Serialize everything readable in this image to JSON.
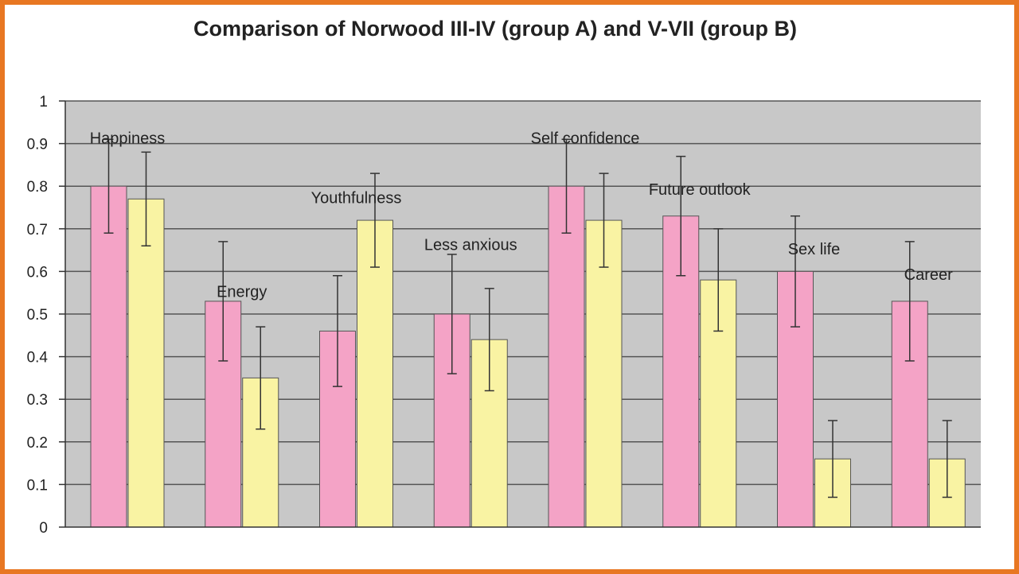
{
  "chart_data": {
    "type": "bar",
    "title": "Comparison of Norwood III-IV (group A) and V-VII (group B)",
    "xlabel": "",
    "ylabel": "",
    "ylim": [
      0,
      1
    ],
    "yticks": [
      "0",
      "0.1",
      "0.2",
      "0.3",
      "0.4",
      "0.5",
      "0.6",
      "0.7",
      "0.8",
      "0.9",
      "1"
    ],
    "grid": true,
    "categories": [
      "Happiness",
      "Energy",
      "Youthfulness",
      "Less anxious",
      "Self confidence",
      "Future outlook",
      "Sex life",
      "Career"
    ],
    "series": [
      {
        "color": "#f4a3c6",
        "values": [
          0.8,
          0.53,
          0.46,
          0.5,
          0.8,
          0.73,
          0.6,
          0.53
        ],
        "error": [
          0.11,
          0.14,
          0.13,
          0.14,
          0.11,
          0.14,
          0.13,
          0.14
        ]
      },
      {
        "color": "#f9f3a3",
        "values": [
          0.77,
          0.35,
          0.72,
          0.44,
          0.72,
          0.58,
          0.16,
          0.16
        ],
        "error": [
          0.11,
          0.12,
          0.11,
          0.12,
          0.11,
          0.12,
          0.09,
          0.09
        ]
      }
    ],
    "colors": {
      "plot_background": "#c8c8c8",
      "gridline": "#555555",
      "border": "#e87722"
    }
  }
}
